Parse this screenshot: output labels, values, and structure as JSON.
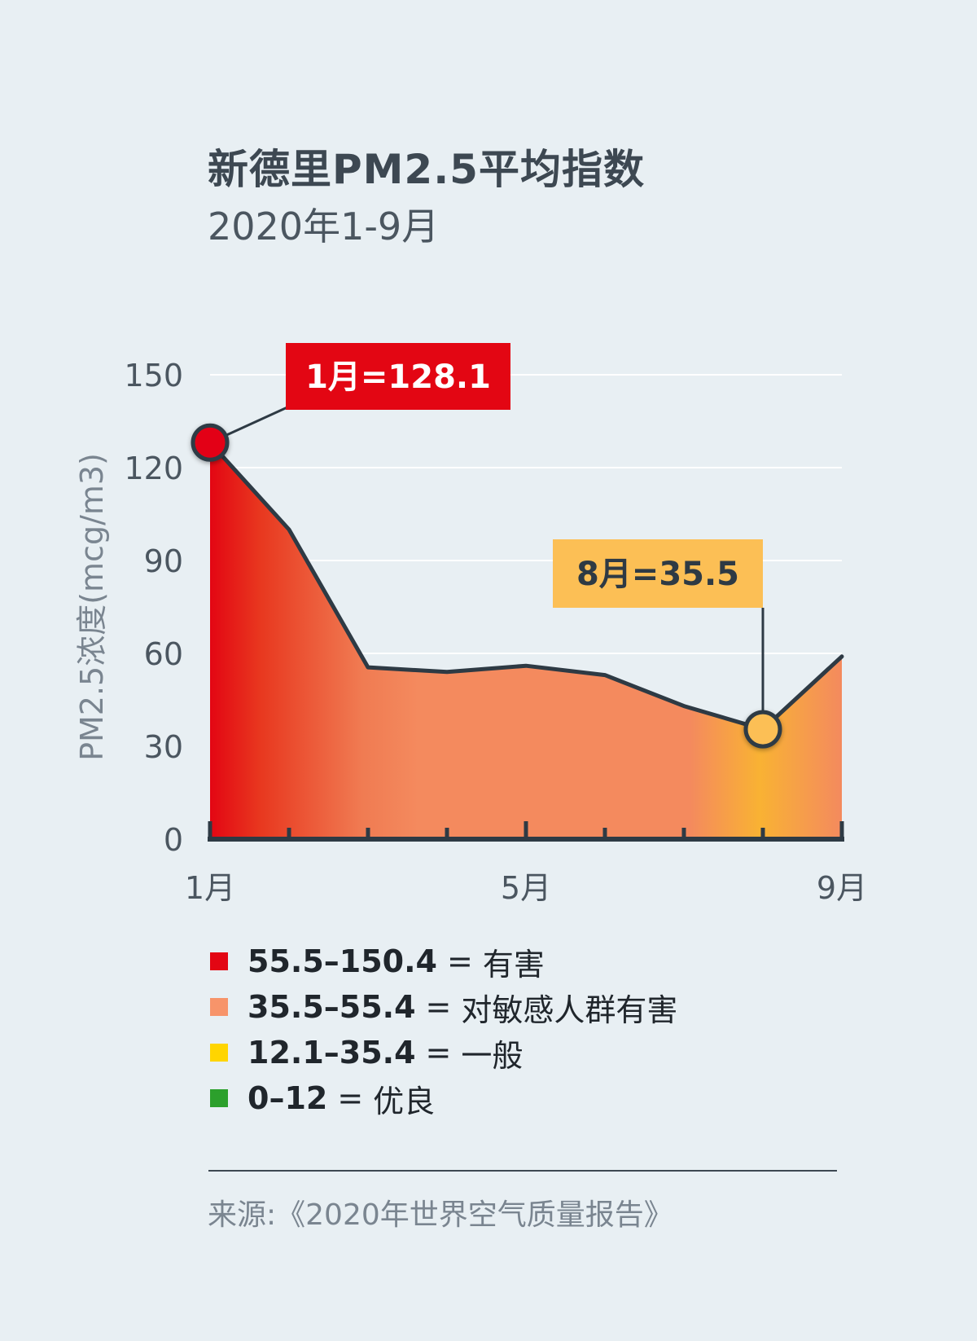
{
  "header": {
    "title": "新德里PM2.5平均指数",
    "subtitle": "2020年1-9月"
  },
  "chart_data": {
    "type": "area",
    "ylabel": "PM2.5浓度(mcg/m3)",
    "ylim": [
      0,
      150
    ],
    "yticks": [
      0,
      30,
      60,
      90,
      120,
      150
    ],
    "x": [
      1,
      2,
      3,
      4,
      5,
      6,
      7,
      8,
      9
    ],
    "xtick_labels": [
      {
        "x": 1,
        "label": "1月"
      },
      {
        "x": 5,
        "label": "5月"
      },
      {
        "x": 9,
        "label": "9月"
      }
    ],
    "values": [
      128.1,
      100,
      55.5,
      54,
      56,
      53,
      43,
      35.5,
      59
    ],
    "grid": true,
    "annotations": [
      {
        "x": 1,
        "y": 128.1,
        "label": "1月=128.1",
        "color": "#e30613"
      },
      {
        "x": 8,
        "y": 35.5,
        "label": "8月=35.5",
        "color": "#fcbf55"
      }
    ],
    "fill_colors": {
      "hazardous": "#e30613",
      "sensitive": "#f48a5e",
      "moderate": "#f9b233"
    },
    "line_color": "#2e3a44"
  },
  "legend": [
    {
      "range": "55.5–150.4",
      "eq": "=",
      "label": "有害",
      "color": "#e30613"
    },
    {
      "range": "35.5–55.4",
      "eq": "=",
      "label": "对敏感人群有害",
      "color": "#f7946a"
    },
    {
      "range": "12.1–35.4",
      "eq": "=",
      "label": "一般",
      "color": "#ffd500"
    },
    {
      "range": "0–12",
      "eq": "=",
      "label": "优良",
      "color": "#2ca02c"
    }
  ],
  "footer": {
    "source": "来源:《2020年世界空气质量报告》"
  }
}
